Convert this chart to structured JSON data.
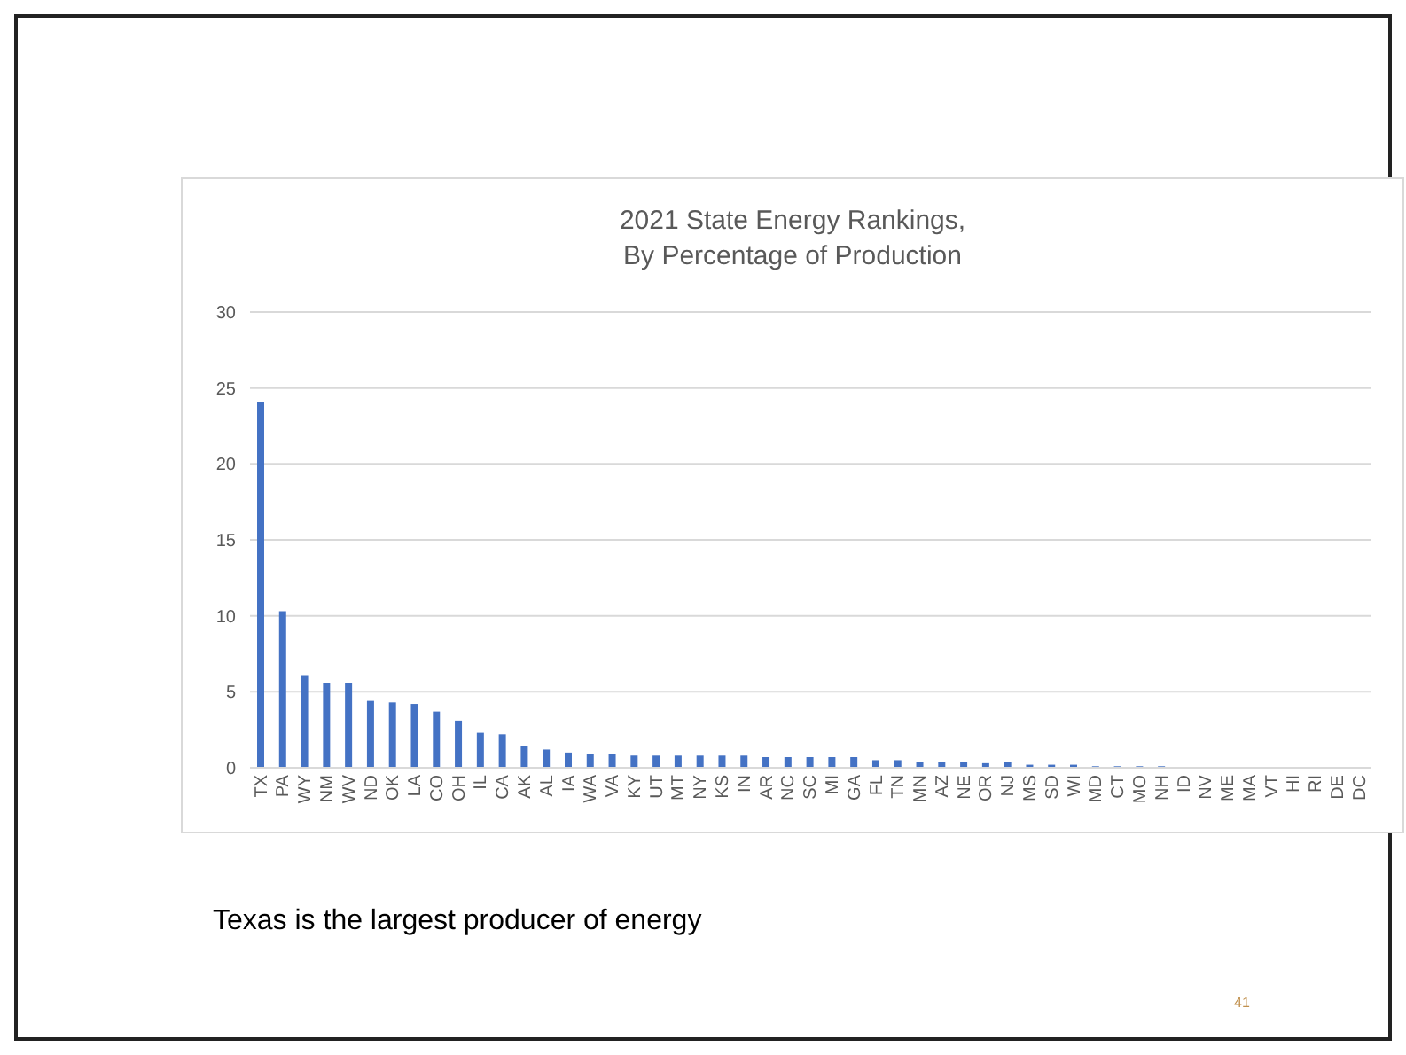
{
  "chart_data": {
    "type": "bar",
    "title": "2021 State Energy Rankings,\nBy Percentage of Production",
    "categories": [
      "TX",
      "PA",
      "WY",
      "NM",
      "WV",
      "ND",
      "OK",
      "LA",
      "CO",
      "OH",
      "IL",
      "CA",
      "AK",
      "AL",
      "IA",
      "WA",
      "VA",
      "KY",
      "UT",
      "MT",
      "NY",
      "KS",
      "IN",
      "AR",
      "NC",
      "SC",
      "MI",
      "GA",
      "FL",
      "TN",
      "MN",
      "AZ",
      "NE",
      "OR",
      "NJ",
      "MS",
      "SD",
      "WI",
      "MD",
      "CT",
      "MO",
      "NH",
      "ID",
      "NV",
      "ME",
      "MA",
      "VT",
      "HI",
      "RI",
      "DE",
      "DC"
    ],
    "values": [
      24.1,
      10.3,
      6.1,
      5.6,
      5.6,
      4.4,
      4.3,
      4.2,
      3.7,
      3.1,
      2.3,
      2.2,
      1.4,
      1.2,
      1.0,
      0.9,
      0.9,
      0.8,
      0.8,
      0.8,
      0.8,
      0.8,
      0.8,
      0.7,
      0.7,
      0.7,
      0.7,
      0.7,
      0.5,
      0.5,
      0.4,
      0.4,
      0.4,
      0.3,
      0.4,
      0.2,
      0.2,
      0.2,
      0.1,
      0.1,
      0.1,
      0.1,
      0,
      0,
      0,
      0,
      0,
      0,
      0,
      0,
      0
    ],
    "color": "#4472c4",
    "ylim": [
      0,
      30
    ],
    "yticks": [
      0,
      5,
      10,
      15,
      20,
      25,
      30
    ],
    "grid": "y",
    "annotations": [
      "Texas is the largest producer of energy",
      "41"
    ]
  }
}
